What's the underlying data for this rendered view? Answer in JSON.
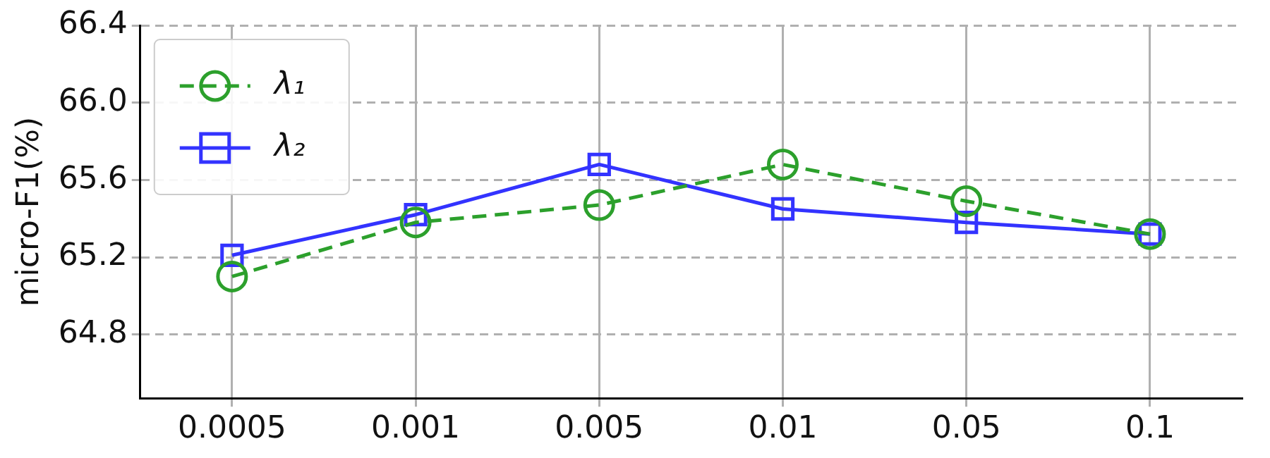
{
  "chart_data": {
    "type": "line",
    "ylabel": "micro-F1(%)",
    "categories": [
      "0.0005",
      "0.001",
      "0.005",
      "0.01",
      "0.05",
      "0.1"
    ],
    "series": [
      {
        "name": "λ₁",
        "color": "#2ca02c",
        "marker": "circle",
        "line_style": "dashed",
        "values": [
          65.1,
          65.38,
          65.47,
          65.68,
          65.49,
          65.32
        ]
      },
      {
        "name": "λ₂",
        "color": "#3333ff",
        "marker": "square",
        "line_style": "solid",
        "values": [
          65.21,
          65.42,
          65.68,
          65.45,
          65.38,
          65.32
        ]
      }
    ],
    "ylim": [
      64.47,
      66.4
    ],
    "yticks": [
      64.8,
      65.2,
      65.6,
      {
        "value": 66,
        "label": "66.0"
      },
      66.4
    ],
    "grid": true,
    "legend": "top left"
  }
}
